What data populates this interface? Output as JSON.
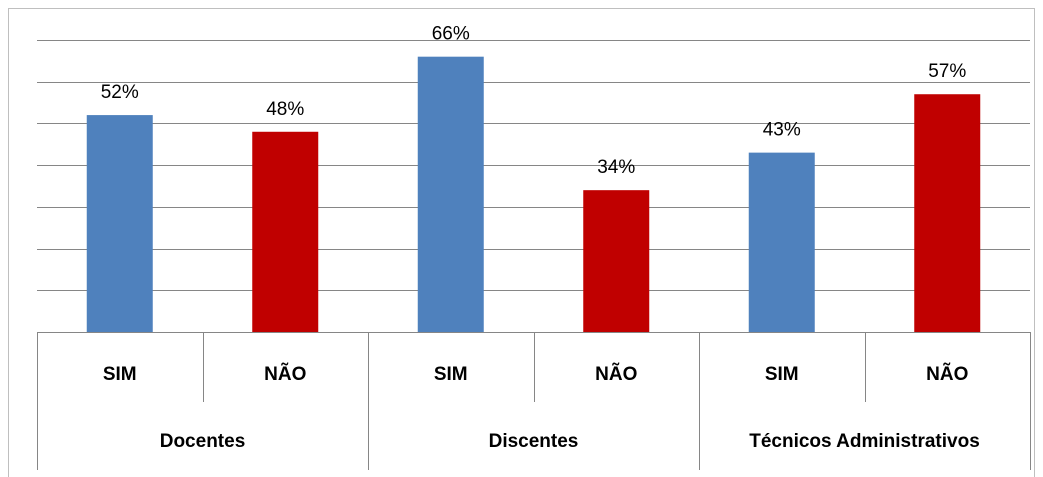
{
  "chart_data": {
    "type": "bar",
    "categories": [
      "SIM",
      "NÃO",
      "SIM",
      "NÃO",
      "SIM",
      "NÃO"
    ],
    "groups": [
      "Docentes",
      "Discentes",
      "Técnicos Administrativos"
    ],
    "values": [
      52,
      48,
      66,
      34,
      43,
      57
    ],
    "value_labels": [
      "52%",
      "48%",
      "66%",
      "34%",
      "43%",
      "57%"
    ],
    "colors": [
      "#4f81bd",
      "#c00000",
      "#4f81bd",
      "#c00000",
      "#4f81bd",
      "#c00000"
    ],
    "ylim": [
      0,
      70
    ],
    "yticks": [
      0,
      10,
      20,
      30,
      40,
      50,
      60,
      70
    ],
    "grid": true
  }
}
